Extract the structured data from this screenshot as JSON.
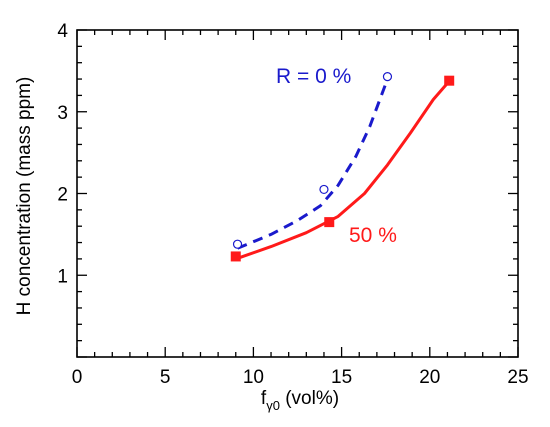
{
  "chart_data": {
    "type": "line",
    "title": "",
    "xlabel": {
      "base": "f",
      "sub": "γ0",
      "suffix": " (vol%)"
    },
    "ylabel": "H concentration (mass ppm)",
    "xlim": [
      0,
      25
    ],
    "ylim": [
      0,
      4
    ],
    "xticks": [
      0,
      5,
      10,
      15,
      20,
      25
    ],
    "yticks": [
      1,
      2,
      3,
      4
    ],
    "xtick_labels": [
      "0",
      "5",
      "10",
      "15",
      "20",
      "25"
    ],
    "ytick_labels": [
      "1",
      "2",
      "3",
      "4"
    ],
    "grid": false,
    "series": [
      {
        "name": "R = 0 %",
        "color": "#1a1acc",
        "line_style": "dashed",
        "marker": "open-circle",
        "points": [
          {
            "x": 9.1,
            "y": 1.38
          },
          {
            "x": 14.0,
            "y": 2.05
          },
          {
            "x": 17.6,
            "y": 3.43
          }
        ],
        "curve": [
          {
            "x": 9.1,
            "y": 1.33
          },
          {
            "x": 11.0,
            "y": 1.5
          },
          {
            "x": 12.5,
            "y": 1.67
          },
          {
            "x": 13.8,
            "y": 1.85
          },
          {
            "x": 14.8,
            "y": 2.1
          },
          {
            "x": 15.8,
            "y": 2.45
          },
          {
            "x": 16.6,
            "y": 2.82
          },
          {
            "x": 17.6,
            "y": 3.4
          }
        ]
      },
      {
        "name": "50 %",
        "color": "#ff1a1a",
        "line_style": "solid",
        "marker": "filled-square",
        "points": [
          {
            "x": 9.0,
            "y": 1.23
          },
          {
            "x": 14.3,
            "y": 1.65
          },
          {
            "x": 21.1,
            "y": 3.38
          }
        ],
        "curve": [
          {
            "x": 9.0,
            "y": 1.2
          },
          {
            "x": 11.0,
            "y": 1.35
          },
          {
            "x": 13.0,
            "y": 1.52
          },
          {
            "x": 14.8,
            "y": 1.72
          },
          {
            "x": 16.3,
            "y": 2.0
          },
          {
            "x": 17.6,
            "y": 2.35
          },
          {
            "x": 18.9,
            "y": 2.74
          },
          {
            "x": 20.2,
            "y": 3.15
          },
          {
            "x": 21.2,
            "y": 3.4
          }
        ]
      }
    ]
  }
}
